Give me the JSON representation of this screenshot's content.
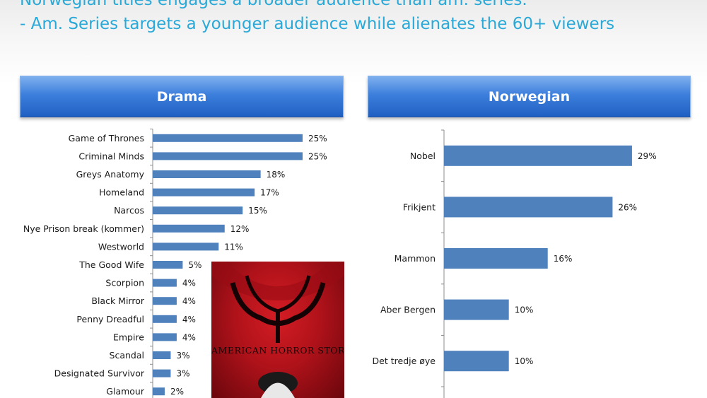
{
  "headline": {
    "line1": "Norwegian titles engages a broader audience than am. series.",
    "line2": "- Am. Series targets a younger audience while alienates the 60+ viewers"
  },
  "colors": {
    "bar": "#4f81bd",
    "header": "#2e6fd2",
    "headline": "#2aa9d8"
  },
  "poster": {
    "title": "AMERICAN HORROR STORY"
  },
  "chart_data": [
    {
      "type": "bar",
      "orientation": "horizontal",
      "title": "Drama",
      "categories": [
        "Game of Thrones",
        "Criminal Minds",
        "Greys Anatomy",
        "Homeland",
        "Narcos",
        "Nye Prison break (kommer)",
        "Westworld",
        "The Good Wife",
        "Scorpion",
        "Black Mirror",
        "Penny Dreadful",
        "Empire",
        "Scandal",
        "Designated Survivor",
        "Glamour"
      ],
      "values": [
        25,
        25,
        18,
        17,
        15,
        12,
        11,
        5,
        4,
        4,
        4,
        4,
        3,
        3,
        2
      ],
      "value_labels": [
        "25%",
        "25%",
        "18%",
        "17%",
        "15%",
        "12%",
        "11%",
        "5%",
        "4%",
        "4%",
        "4%",
        "4%",
        "3%",
        "3%",
        "2%"
      ],
      "unit": "%"
    },
    {
      "type": "bar",
      "orientation": "horizontal",
      "title": "Norwegian",
      "categories": [
        "Nobel",
        "Frikjent",
        "Mammon",
        "Aber Bergen",
        "Det tredje øye"
      ],
      "values": [
        29,
        26,
        16,
        10,
        10
      ],
      "value_labels": [
        "29%",
        "26%",
        "16%",
        "10%",
        "10%"
      ],
      "unit": "%"
    }
  ]
}
